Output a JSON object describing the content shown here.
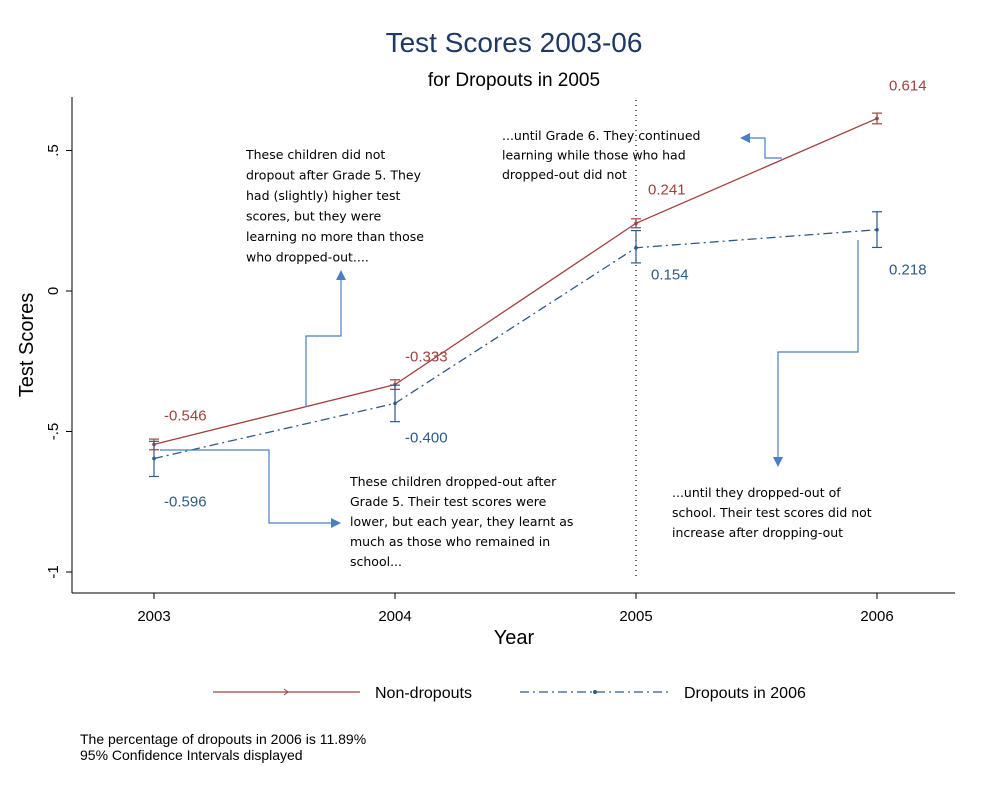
{
  "chart_data": {
    "type": "line",
    "title": "Test Scores 2003-06",
    "subtitle": "for Dropouts in 2005",
    "xlabel": "Year",
    "ylabel": "Test Scores",
    "x": [
      2003,
      2004,
      2005,
      2006
    ],
    "x_tick_labels": [
      "2003",
      "2004",
      "2005",
      "2006"
    ],
    "ylim": [
      -1.07,
      0.7
    ],
    "y_ticks": [
      -1,
      -0.5,
      0,
      0.5
    ],
    "y_tick_labels": [
      "-1",
      "-.5",
      "0",
      ".5"
    ],
    "grid": false,
    "vline_x": 2005,
    "legend_position": "bottom",
    "series": [
      {
        "name": "Non-dropouts",
        "color": "#a0413e",
        "style": "solid",
        "values": [
          -0.546,
          -0.333,
          0.241,
          0.614
        ],
        "labels": [
          "-0.546",
          "-0.333",
          "0.241",
          "0.614"
        ],
        "ci_low": [
          -0.565,
          -0.35,
          0.225,
          0.595
        ],
        "ci_high": [
          -0.527,
          -0.316,
          0.257,
          0.633
        ]
      },
      {
        "name": "Dropouts in 2006",
        "color": "#2e5a87",
        "style": "dashdot",
        "values": [
          -0.596,
          -0.4,
          0.154,
          0.218
        ],
        "labels": [
          "-0.596",
          "-0.400",
          "0.154",
          "0.218"
        ],
        "ci_low": [
          -0.66,
          -0.465,
          0.1,
          0.155
        ],
        "ci_high": [
          -0.535,
          -0.335,
          0.215,
          0.282
        ]
      }
    ],
    "annotations": [
      [
        "These children did not",
        "dropout after Grade 5. They",
        "had (slightly) higher test",
        "scores, but they were",
        "learning no more than those",
        "who dropped-out...."
      ],
      [
        "These children dropped-out after",
        "Grade 5. Their test scores were",
        "lower, but each year, they learnt as",
        "much as those who remained in",
        "school..."
      ],
      [
        "...until Grade 6. They continued",
        "learning while those who had",
        "dropped-out did not"
      ],
      [
        "...until they dropped-out of",
        "school. Their test scores did not",
        "increase after dropping-out"
      ]
    ]
  },
  "notes": [
    "The percentage of dropouts in 2006 is 11.89%",
    "95% Confidence Intervals displayed"
  ],
  "colors": {
    "arrow": "#4a7fc8",
    "title": "#1f3864"
  }
}
